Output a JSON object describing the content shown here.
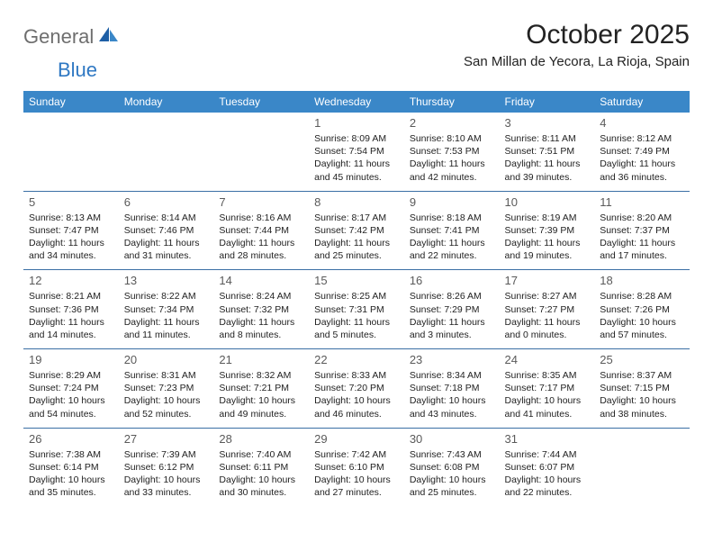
{
  "logo": {
    "gray": "General",
    "blue": "Blue"
  },
  "title": "October 2025",
  "location": "San Millan de Yecora, La Rioja, Spain",
  "day_headers": [
    "Sunday",
    "Monday",
    "Tuesday",
    "Wednesday",
    "Thursday",
    "Friday",
    "Saturday"
  ],
  "colors": {
    "header_bg": "#3a87c8",
    "header_text": "#ffffff",
    "border": "#3a6fa5",
    "logo_gray": "#6e6e6e",
    "logo_blue": "#2f78c3",
    "body_text": "#222222",
    "daynum": "#5a5a5a",
    "bg": "#ffffff"
  },
  "weeks": [
    [
      null,
      null,
      null,
      {
        "n": "1",
        "sr": "8:09 AM",
        "ss": "7:54 PM",
        "d1": "11 hours",
        "d2": "and 45 minutes."
      },
      {
        "n": "2",
        "sr": "8:10 AM",
        "ss": "7:53 PM",
        "d1": "11 hours",
        "d2": "and 42 minutes."
      },
      {
        "n": "3",
        "sr": "8:11 AM",
        "ss": "7:51 PM",
        "d1": "11 hours",
        "d2": "and 39 minutes."
      },
      {
        "n": "4",
        "sr": "8:12 AM",
        "ss": "7:49 PM",
        "d1": "11 hours",
        "d2": "and 36 minutes."
      }
    ],
    [
      {
        "n": "5",
        "sr": "8:13 AM",
        "ss": "7:47 PM",
        "d1": "11 hours",
        "d2": "and 34 minutes."
      },
      {
        "n": "6",
        "sr": "8:14 AM",
        "ss": "7:46 PM",
        "d1": "11 hours",
        "d2": "and 31 minutes."
      },
      {
        "n": "7",
        "sr": "8:16 AM",
        "ss": "7:44 PM",
        "d1": "11 hours",
        "d2": "and 28 minutes."
      },
      {
        "n": "8",
        "sr": "8:17 AM",
        "ss": "7:42 PM",
        "d1": "11 hours",
        "d2": "and 25 minutes."
      },
      {
        "n": "9",
        "sr": "8:18 AM",
        "ss": "7:41 PM",
        "d1": "11 hours",
        "d2": "and 22 minutes."
      },
      {
        "n": "10",
        "sr": "8:19 AM",
        "ss": "7:39 PM",
        "d1": "11 hours",
        "d2": "and 19 minutes."
      },
      {
        "n": "11",
        "sr": "8:20 AM",
        "ss": "7:37 PM",
        "d1": "11 hours",
        "d2": "and 17 minutes."
      }
    ],
    [
      {
        "n": "12",
        "sr": "8:21 AM",
        "ss": "7:36 PM",
        "d1": "11 hours",
        "d2": "and 14 minutes."
      },
      {
        "n": "13",
        "sr": "8:22 AM",
        "ss": "7:34 PM",
        "d1": "11 hours",
        "d2": "and 11 minutes."
      },
      {
        "n": "14",
        "sr": "8:24 AM",
        "ss": "7:32 PM",
        "d1": "11 hours",
        "d2": "and 8 minutes."
      },
      {
        "n": "15",
        "sr": "8:25 AM",
        "ss": "7:31 PM",
        "d1": "11 hours",
        "d2": "and 5 minutes."
      },
      {
        "n": "16",
        "sr": "8:26 AM",
        "ss": "7:29 PM",
        "d1": "11 hours",
        "d2": "and 3 minutes."
      },
      {
        "n": "17",
        "sr": "8:27 AM",
        "ss": "7:27 PM",
        "d1": "11 hours",
        "d2": "and 0 minutes."
      },
      {
        "n": "18",
        "sr": "8:28 AM",
        "ss": "7:26 PM",
        "d1": "10 hours",
        "d2": "and 57 minutes."
      }
    ],
    [
      {
        "n": "19",
        "sr": "8:29 AM",
        "ss": "7:24 PM",
        "d1": "10 hours",
        "d2": "and 54 minutes."
      },
      {
        "n": "20",
        "sr": "8:31 AM",
        "ss": "7:23 PM",
        "d1": "10 hours",
        "d2": "and 52 minutes."
      },
      {
        "n": "21",
        "sr": "8:32 AM",
        "ss": "7:21 PM",
        "d1": "10 hours",
        "d2": "and 49 minutes."
      },
      {
        "n": "22",
        "sr": "8:33 AM",
        "ss": "7:20 PM",
        "d1": "10 hours",
        "d2": "and 46 minutes."
      },
      {
        "n": "23",
        "sr": "8:34 AM",
        "ss": "7:18 PM",
        "d1": "10 hours",
        "d2": "and 43 minutes."
      },
      {
        "n": "24",
        "sr": "8:35 AM",
        "ss": "7:17 PM",
        "d1": "10 hours",
        "d2": "and 41 minutes."
      },
      {
        "n": "25",
        "sr": "8:37 AM",
        "ss": "7:15 PM",
        "d1": "10 hours",
        "d2": "and 38 minutes."
      }
    ],
    [
      {
        "n": "26",
        "sr": "7:38 AM",
        "ss": "6:14 PM",
        "d1": "10 hours",
        "d2": "and 35 minutes."
      },
      {
        "n": "27",
        "sr": "7:39 AM",
        "ss": "6:12 PM",
        "d1": "10 hours",
        "d2": "and 33 minutes."
      },
      {
        "n": "28",
        "sr": "7:40 AM",
        "ss": "6:11 PM",
        "d1": "10 hours",
        "d2": "and 30 minutes."
      },
      {
        "n": "29",
        "sr": "7:42 AM",
        "ss": "6:10 PM",
        "d1": "10 hours",
        "d2": "and 27 minutes."
      },
      {
        "n": "30",
        "sr": "7:43 AM",
        "ss": "6:08 PM",
        "d1": "10 hours",
        "d2": "and 25 minutes."
      },
      {
        "n": "31",
        "sr": "7:44 AM",
        "ss": "6:07 PM",
        "d1": "10 hours",
        "d2": "and 22 minutes."
      },
      null
    ]
  ],
  "labels": {
    "sunrise": "Sunrise: ",
    "sunset": "Sunset: ",
    "daylight": "Daylight: "
  }
}
